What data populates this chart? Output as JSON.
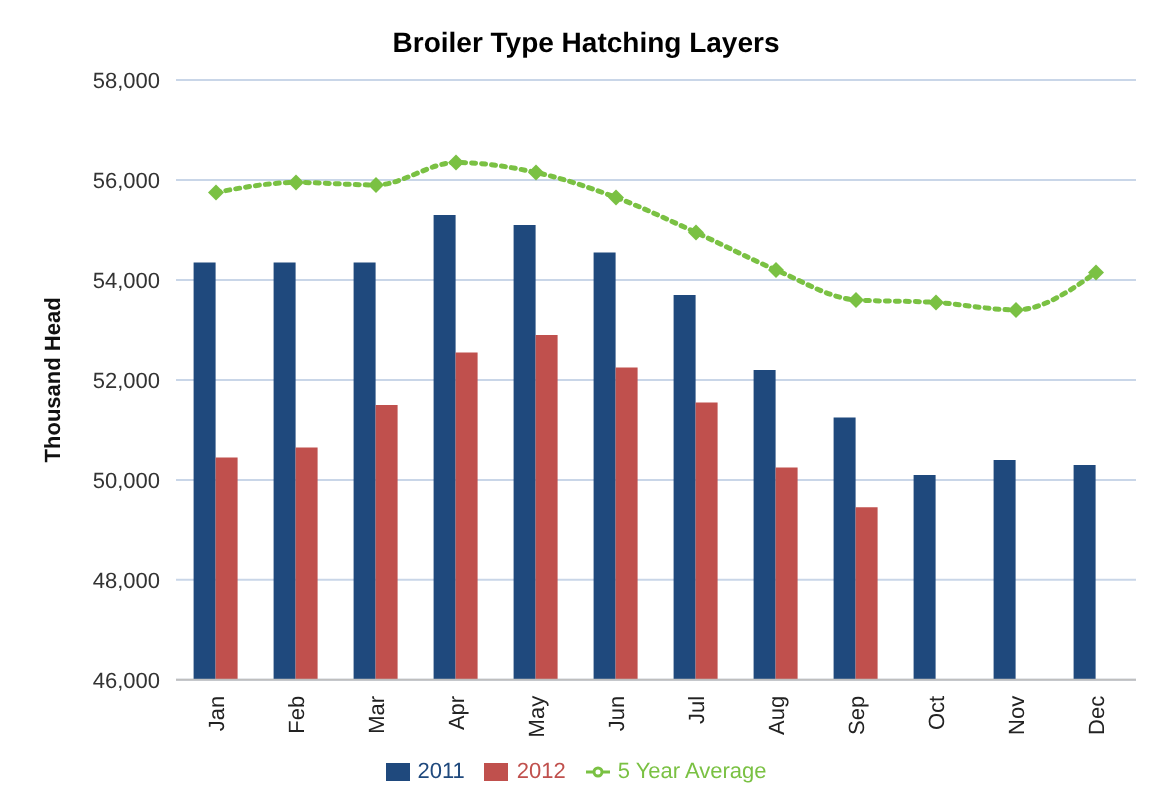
{
  "chart_data": {
    "type": "bar",
    "title": "Broiler Type Hatching Layers",
    "ylabel": "Thousand Head",
    "categories": [
      "Jan",
      "Feb",
      "Mar",
      "Apr",
      "May",
      "Jun",
      "Jul",
      "Aug",
      "Sep",
      "Oct",
      "Nov",
      "Dec"
    ],
    "series": [
      {
        "name": "2011",
        "color": "#1f497d",
        "values": [
          54350,
          54350,
          54350,
          55300,
          55100,
          54550,
          53700,
          52200,
          51250,
          50100,
          50400,
          50300
        ]
      },
      {
        "name": "2012",
        "color": "#c0504d",
        "values": [
          50450,
          50650,
          51500,
          52550,
          52900,
          52250,
          51550,
          50250,
          49450,
          null,
          null,
          null
        ]
      },
      {
        "name": "5 Year Average",
        "type": "line",
        "color": "#7ac143",
        "marker": "diamond",
        "line_style": "dotted",
        "values": [
          55750,
          55950,
          55900,
          56350,
          56150,
          55650,
          54950,
          54200,
          53600,
          53550,
          53400,
          54150
        ]
      }
    ],
    "ylim": [
      46000,
      58000
    ],
    "yticks": [
      {
        "value": 46000,
        "label": "46,000"
      },
      {
        "value": 48000,
        "label": "48,000"
      },
      {
        "value": 50000,
        "label": "50,000"
      },
      {
        "value": 52000,
        "label": "52,000"
      },
      {
        "value": 54000,
        "label": "54,000"
      },
      {
        "value": 56000,
        "label": "56,000"
      },
      {
        "value": 58000,
        "label": "58,000"
      }
    ],
    "grid": "y",
    "legend": "bottom"
  }
}
